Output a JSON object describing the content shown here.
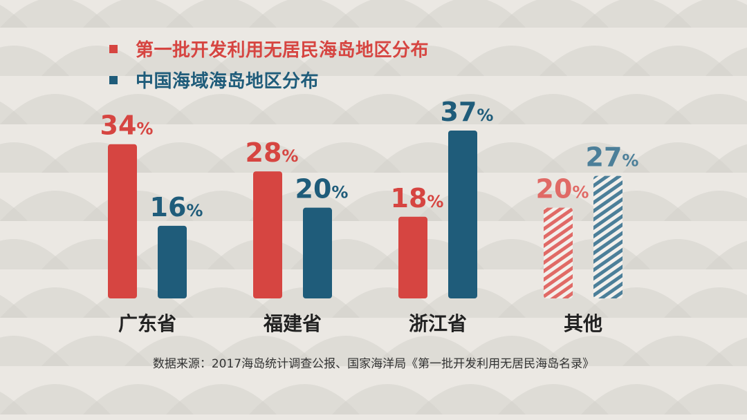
{
  "legend": {
    "series1": "第一批开发利用无居民海岛地区分布",
    "series2": "中国海域海岛地区分布"
  },
  "colors": {
    "series1": "#d64541",
    "series2": "#1f5c7a",
    "series1_light": "#e06a66",
    "series2_light": "#4c7f99",
    "background": "#ebe8e3",
    "mountain": "#d4d1cc"
  },
  "source": "数据来源：2017海岛统计调查公报、国家海洋局《第一批开发利用无居民海岛名录》",
  "chart_data": {
    "type": "bar",
    "categories": [
      "广东省",
      "福建省",
      "浙江省",
      "其他"
    ],
    "series": [
      {
        "name": "第一批开发利用无居民海岛地区分布",
        "values": [
          34,
          28,
          18,
          20
        ]
      },
      {
        "name": "中国海域海岛地区分布",
        "values": [
          16,
          20,
          37,
          27
        ]
      }
    ],
    "value_suffix": "%",
    "ylim": [
      0,
      37
    ],
    "grid": false,
    "legend_position": "top-left",
    "hatched_category": "其他"
  }
}
